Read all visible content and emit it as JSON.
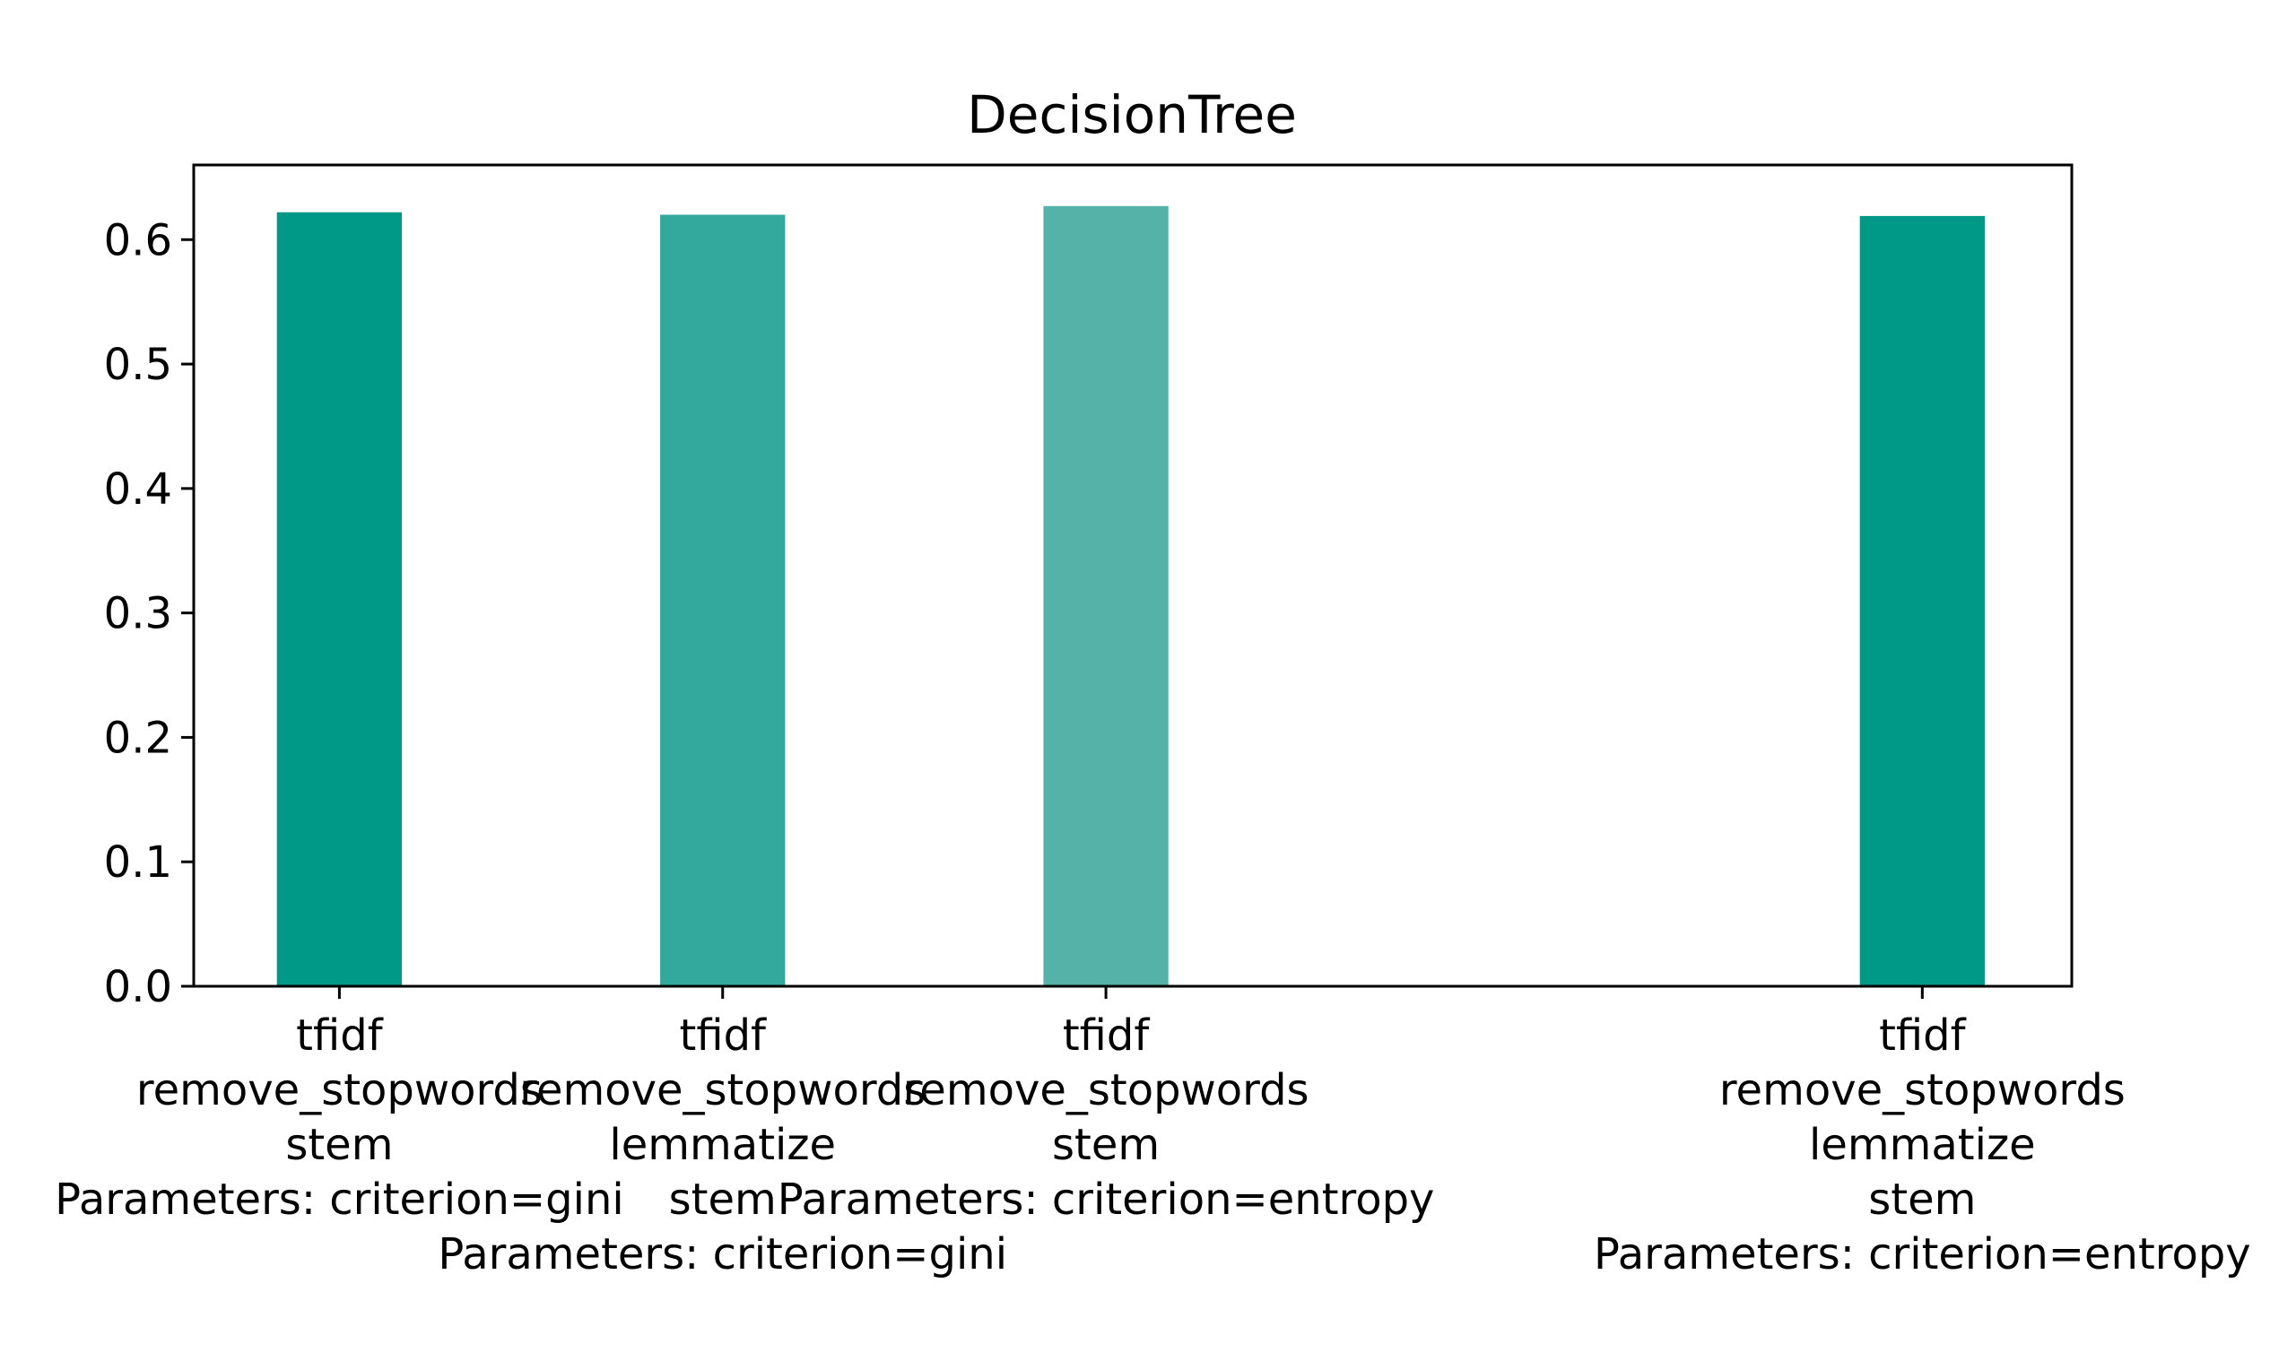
{
  "chart_data": {
    "type": "bar",
    "title": "DecisionTree",
    "xlabel": "",
    "ylabel": "",
    "ylim": [
      0,
      0.66
    ],
    "yticks": [
      "0.0",
      "0.1",
      "0.2",
      "0.3",
      "0.4",
      "0.5",
      "0.6"
    ],
    "grid": false,
    "legend": "none",
    "x_positions": [
      0,
      1,
      2,
      4.13
    ],
    "x_range": [
      -0.38,
      4.52
    ],
    "categories": [
      [
        "tfidf",
        "remove_stopwords",
        "stem",
        "Parameters: criterion=gini"
      ],
      [
        "tfidf",
        "remove_stopwords",
        "lemmatize",
        "stem",
        "Parameters: criterion=gini"
      ],
      [
        "tfidf",
        "remove_stopwords",
        "stem",
        "Parameters: criterion=entropy"
      ],
      [
        "tfidf",
        "remove_stopwords",
        "lemmatize",
        "stem",
        "Parameters: criterion=entropy"
      ]
    ],
    "values": [
      0.622,
      0.62,
      0.627,
      0.619
    ],
    "colors": [
      "#009988",
      "#33a89d",
      "#54b2a8",
      "#009988"
    ]
  }
}
